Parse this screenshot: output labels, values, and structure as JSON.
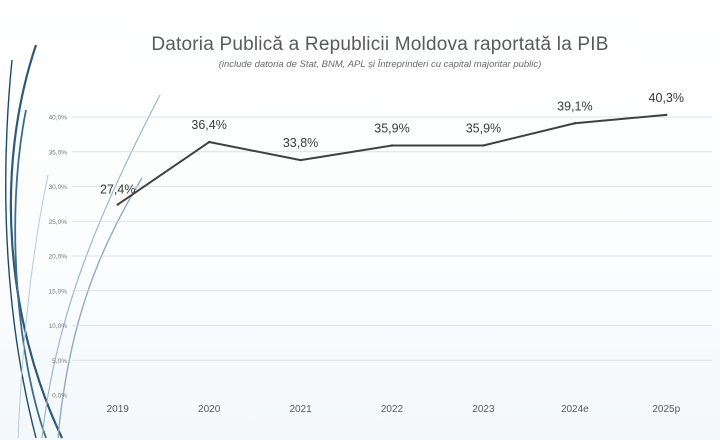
{
  "chart_data": {
    "type": "line",
    "title": "Datoria Publică a Republicii Moldova raportată la PIB",
    "subtitle": "(include datoria de Stat, BNM, APL și Întreprinderi cu capital majoritar public)",
    "categories": [
      "2019",
      "2020",
      "2021",
      "2022",
      "2023",
      "2024e",
      "2025p"
    ],
    "series": [
      {
        "values": [
          27.4,
          36.4,
          33.8,
          35.9,
          35.9,
          39.1,
          40.3
        ],
        "labels": [
          "27,4%",
          "36,4%",
          "33,8%",
          "35,9%",
          "35,9%",
          "39,1%",
          "40,3%"
        ]
      }
    ],
    "ylim": [
      0,
      40
    ],
    "yticks": [
      0,
      5,
      10,
      15,
      20,
      25,
      30,
      35,
      40
    ],
    "ytick_labels": [
      "0,0%",
      "5,0%",
      "10,0%",
      "15,0%",
      "20,0%",
      "25,0%",
      "30,0%",
      "35,0%",
      "40,0%"
    ],
    "grid": true,
    "legend": "none",
    "colors": {
      "line": "#404040",
      "grid": "#d9d9d9",
      "text": "#595959",
      "accent": "#2e5a78"
    }
  }
}
